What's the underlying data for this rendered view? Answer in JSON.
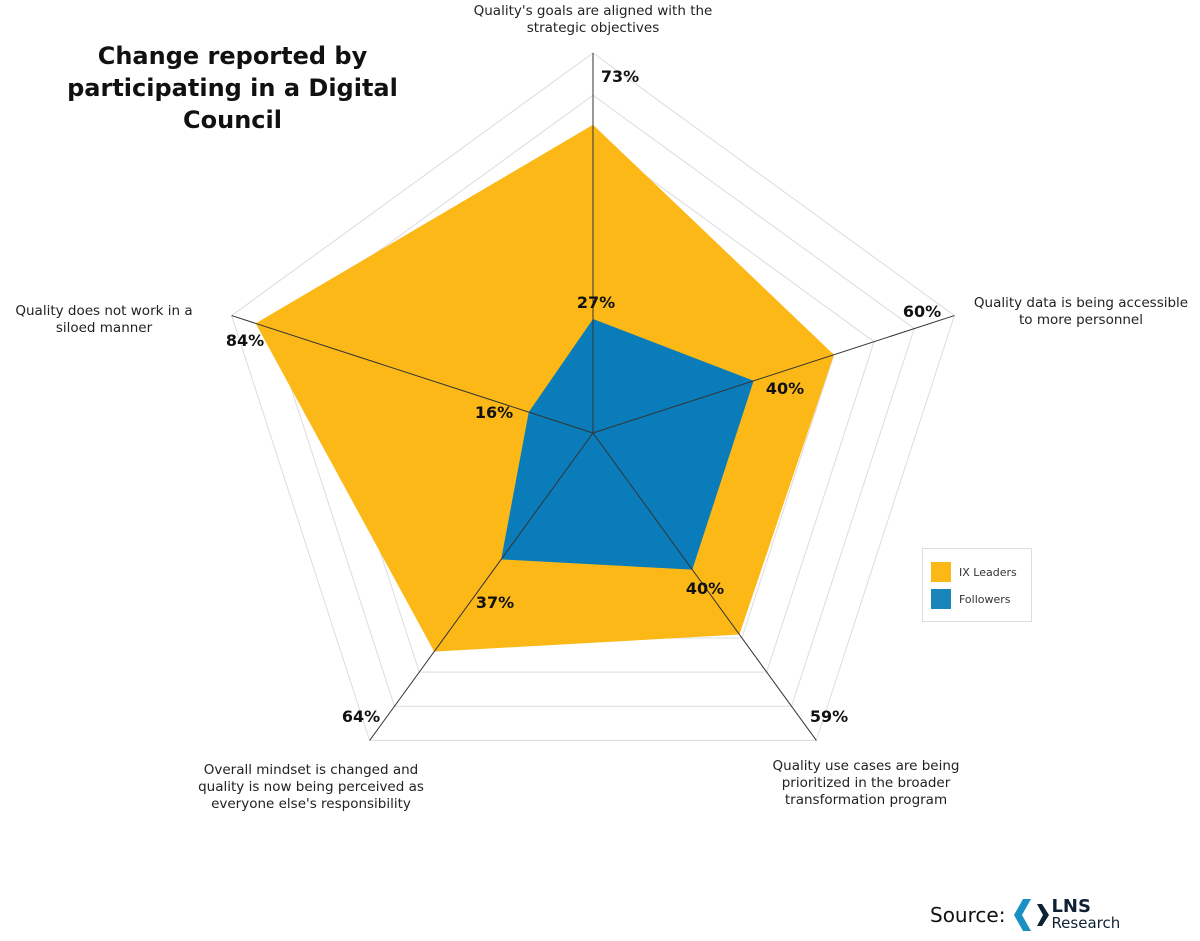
{
  "chart_data": {
    "type": "radar",
    "title": "Change reported by participating in a Digital Council",
    "categories": [
      "Quality's goals are aligned with the strategic objectives",
      "Quality data is being accessible to more personnel",
      "Quality use cases are being prioritized in the broader transformation program",
      "Overall mindset is changed and quality is now being perceived as everyone else's responsibility",
      "Quality does not work in a siloed manner"
    ],
    "series": [
      {
        "name": "IX Leaders",
        "values": [
          73,
          60,
          59,
          64,
          84
        ],
        "color": "#FBB817"
      },
      {
        "name": "Followers",
        "values": [
          27,
          40,
          40,
          37,
          16
        ],
        "color": "#0A7CBA"
      }
    ],
    "unit": "%",
    "rlim": [
      0,
      90
    ],
    "grid_step": 10,
    "grid": true,
    "legend": "right"
  },
  "source": {
    "label": "Source:",
    "logo_name": "LNS",
    "logo_sub": "Research",
    "logo_colors": [
      "#1a8fc4",
      "#0f2233"
    ]
  }
}
